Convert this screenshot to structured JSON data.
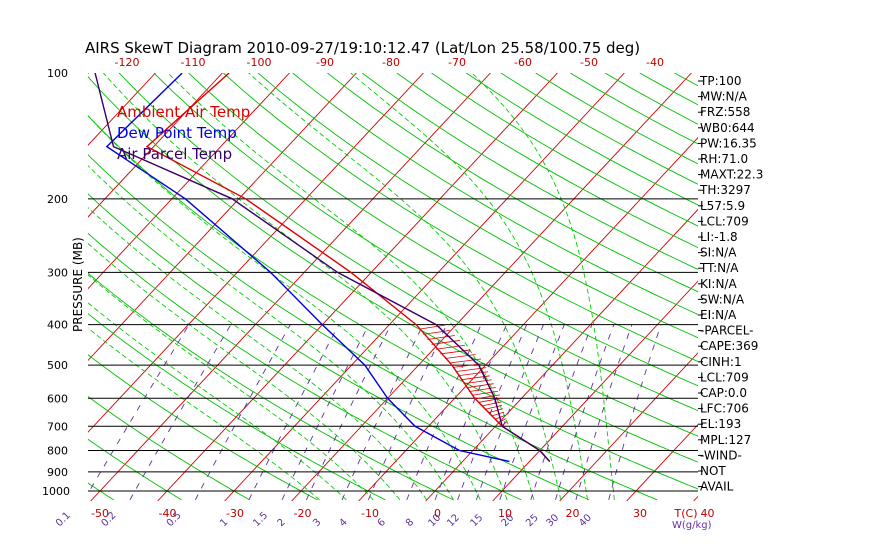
{
  "chart_data": {
    "type": "line",
    "title": "AIRS SkewT Diagram 2010-09-27/19:10:12.47 (Lat/Lon 25.58/100.75 deg)",
    "ylabel": "PRESSURE (MB)",
    "xlabel": "T(C)",
    "mixing_ratio_label": "W(g/kg)",
    "pressure_ticks": [
      100,
      200,
      300,
      400,
      500,
      600,
      700,
      800,
      900,
      1000
    ],
    "bottom_temp_ticks": [
      -50,
      -40,
      -30,
      -20,
      -10,
      0,
      10,
      20,
      30,
      40
    ],
    "top_temp_ticks": [
      -120,
      -110,
      -100,
      -90,
      -80,
      -70,
      -60,
      -50,
      -40
    ],
    "mixing_ratio_ticks": [
      "0.1",
      "0.2",
      "0.5",
      "1",
      "1.5",
      "2",
      "3",
      "4",
      "6",
      "8",
      "10",
      "12",
      "15",
      "20",
      "25",
      "30",
      "40"
    ],
    "legend": [
      "Ambient Air Temp",
      "Dew Point Temp",
      "Air Parcel Temp"
    ],
    "colors": {
      "ambient": "#e00000",
      "dewpoint": "#0000e0",
      "parcel": "#3a006a",
      "isotherm": "#d00000",
      "dry_adiabat": "#00c000",
      "moist_adiabat": "#00d000",
      "mixing_ratio": "#6030a0",
      "axis_text": "#c00000"
    },
    "series": [
      {
        "name": "Ambient Air Temp",
        "points": [
          [
            100,
            -79
          ],
          [
            150,
            -81
          ],
          [
            200,
            -59
          ],
          [
            300,
            -33
          ],
          [
            400,
            -16
          ],
          [
            500,
            -5
          ],
          [
            600,
            3
          ],
          [
            700,
            11
          ],
          [
            800,
            20
          ],
          [
            850,
            23
          ]
        ]
      },
      {
        "name": "Dew Point Temp",
        "points": [
          [
            100,
            -86
          ],
          [
            150,
            -87
          ],
          [
            200,
            -68
          ],
          [
            300,
            -45
          ],
          [
            400,
            -30
          ],
          [
            500,
            -18
          ],
          [
            600,
            -10
          ],
          [
            700,
            -2
          ],
          [
            800,
            8
          ],
          [
            850,
            17
          ]
        ]
      },
      {
        "name": "Air Parcel Temp",
        "points": [
          [
            100,
            -99
          ],
          [
            150,
            -86
          ],
          [
            200,
            -61
          ],
          [
            300,
            -35
          ],
          [
            400,
            -13
          ],
          [
            500,
            -1
          ],
          [
            600,
            6
          ],
          [
            700,
            11
          ],
          [
            800,
            20
          ],
          [
            850,
            23
          ]
        ]
      }
    ],
    "indices": [
      "TP:100",
      "MW:N/A",
      "FRZ:558",
      "WB0:644",
      "PW:16.35",
      "RH:71.0",
      "MAXT:22.3",
      "TH:3297",
      "L57:5.9",
      "LCL:709",
      "LI:-1.8",
      "SI:N/A",
      "TT:N/A",
      "KI:N/A",
      "SW:N/A",
      "EI:N/A",
      "-PARCEL-",
      "CAPE:369",
      "CINH:1",
      "LCL:709",
      "CAP:0.0",
      "LFC:706",
      "EL:193",
      "MPL:127",
      "-WIND-",
      "NOT",
      "AVAIL"
    ]
  }
}
